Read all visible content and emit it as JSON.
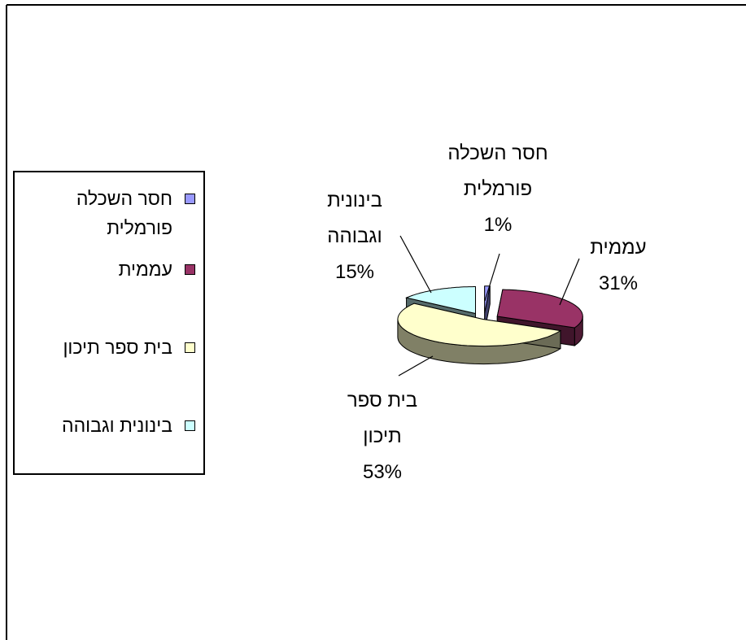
{
  "chart_data": {
    "type": "pie",
    "slices": [
      {
        "label": "חסר השכלה פורמלית",
        "label_lines": [
          "חסר השכלה",
          "פורמלית"
        ],
        "legend_lines": [
          "חסר השכלה",
          "פורמלית"
        ],
        "value": 1,
        "pct_text": "1%",
        "color": "#9999ff"
      },
      {
        "label": "עממית",
        "label_lines": [
          "עממית"
        ],
        "legend_lines": [
          "עממית"
        ],
        "value": 31,
        "pct_text": "31%",
        "color": "#993366"
      },
      {
        "label": "בית ספר תיכון",
        "label_lines": [
          "בית ספר",
          "תיכון"
        ],
        "legend_lines": [
          "בית ספר תיכון"
        ],
        "value": 53,
        "pct_text": "53%",
        "color": "#ffffcc"
      },
      {
        "label": "בינונית וגבוהה",
        "label_lines": [
          "בינונית",
          "וגבוהה"
        ],
        "legend_lines": [
          "בינונית וגבוהה"
        ],
        "value": 15,
        "pct_text": "15%",
        "color": "#ccffff"
      }
    ],
    "legend_placement": "left",
    "style": "3d-exploded"
  }
}
